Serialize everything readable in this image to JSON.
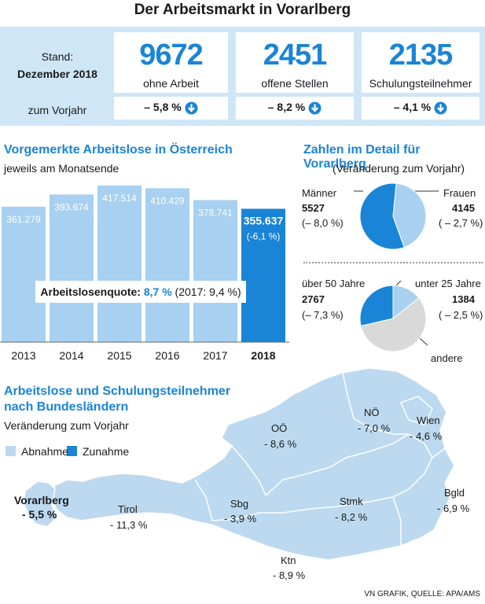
{
  "title": "Der Arbeitsmarkt in Vorarlberg",
  "colors": {
    "accent": "#1a84d6",
    "light": "#a8d0f0",
    "panel": "#cfe6f7",
    "grey": "#d9d9d9"
  },
  "stand": {
    "label": "Stand:",
    "date": "Dezember 2018",
    "vorjahr": "zum Vorjahr"
  },
  "stats": [
    {
      "value": "9672",
      "caption": "ohne Arbeit",
      "change": "– 5,8 %"
    },
    {
      "value": "2451",
      "caption": "offene Stellen",
      "change": "– 8,2 %"
    },
    {
      "value": "2135",
      "caption": "Schulungsteilnehmer",
      "change": "– 4,1 %"
    }
  ],
  "bar_section": {
    "title": "Vorgemerkte Arbeitslose in Österreich",
    "subtitle": "jeweils am Monatsende"
  },
  "chart_data": {
    "type": "bar",
    "title": "Vorgemerkte Arbeitslose in Österreich",
    "subtitle": "jeweils am Monatsende",
    "categories": [
      "2013",
      "2014",
      "2015",
      "2016",
      "2017",
      "2018"
    ],
    "values": [
      361279,
      393674,
      417514,
      410429,
      378741,
      355637
    ],
    "value_labels": [
      "361.279",
      "393.674",
      "417.514",
      "410.429",
      "378.741",
      "355.637"
    ],
    "highlight_change": "(-6,1 %)",
    "ylim": [
      0,
      430000
    ],
    "quote": {
      "label": "Arbeitslosenquote:",
      "value": "8,7 %",
      "prev": "(2017: 9,4 %)"
    }
  },
  "pie_section": {
    "title": "Zahlen im Detail für Vorarlberg",
    "subtitle": "(Veränderung zum Vorjahr)",
    "pie1": {
      "shares": [
        5527,
        4145
      ],
      "left": {
        "label": "Männer",
        "value": "5527",
        "change": "(– 8,0 %)"
      },
      "right": {
        "label": "Frauen",
        "value": "4145",
        "change": "( – 2,7 %)"
      }
    },
    "pie2": {
      "shares": [
        2767,
        1384,
        5521
      ],
      "left": {
        "label": "über 50 Jahre",
        "value": "2767",
        "change": "(– 7,3 %)"
      },
      "right": {
        "label": "unter 25 Jahre",
        "value": "1384",
        "change": "( – 2,5 %)"
      },
      "other": "andere"
    }
  },
  "map_section": {
    "title1": "Arbeitslose und Schulungsteilnehmer",
    "title2": "nach Bundesländern",
    "subtitle": "Veränderung zum Vorjahr",
    "legend_decrease": "Abnahme",
    "legend_increase": "Zunahme",
    "states": [
      {
        "name": "Vorarlberg",
        "value": "- 5,5 %"
      },
      {
        "name": "Tirol",
        "value": "- 11,3 %"
      },
      {
        "name": "Sbg",
        "value": "- 3,9 %"
      },
      {
        "name": "OÖ",
        "value": "- 8,6 %"
      },
      {
        "name": "NÖ",
        "value": "- 7,0 %"
      },
      {
        "name": "Wien",
        "value": "- 4,6 %"
      },
      {
        "name": "Stmk",
        "value": "- 8,2 %"
      },
      {
        "name": "Ktn",
        "value": "- 8,9 %"
      },
      {
        "name": "Bgld",
        "value": "- 6,9 %"
      }
    ]
  },
  "source": "VN GRAFIK, QUELLE: APA/AMS"
}
